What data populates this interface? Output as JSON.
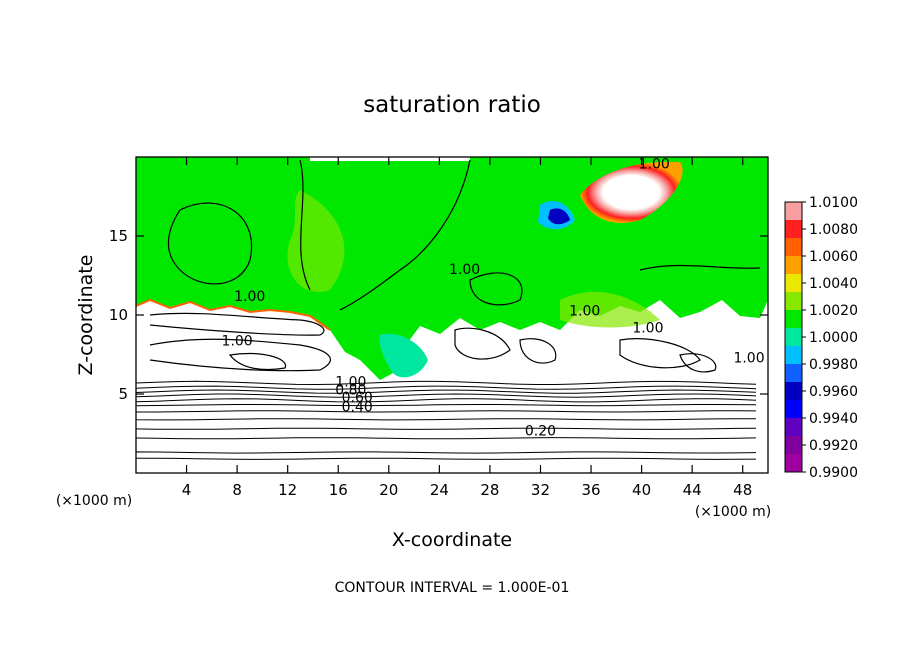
{
  "chart_data": {
    "type": "heatmap",
    "title": "saturation ratio",
    "xlabel": "X-coordinate",
    "ylabel": "Z-coordinate",
    "x_unit": "(×1000 m)",
    "z_unit": "(×1000 m)",
    "xlim": [
      0,
      50
    ],
    "ylim": [
      0,
      20
    ],
    "x_ticks": [
      4,
      8,
      12,
      16,
      20,
      24,
      28,
      32,
      36,
      40,
      44,
      48
    ],
    "y_ticks": [
      5,
      10,
      15
    ],
    "footer": "CONTOUR INTERVAL = 1.000E-01",
    "colorbar": {
      "labels": [
        "1.0100",
        "1.0080",
        "1.0060",
        "1.0040",
        "1.0020",
        "1.0000",
        "0.9980",
        "0.9960",
        "0.9940",
        "0.9920",
        "0.9900"
      ],
      "colors": [
        "#f8a0a0",
        "#ff2020",
        "#ff6000",
        "#ffa000",
        "#e8e800",
        "#88e800",
        "#00e800",
        "#00e8a0",
        "#00c0ff",
        "#1060ff",
        "#0000c0",
        "#0000ff",
        "#6000c0",
        "#8000a0",
        "#a000a0"
      ],
      "min": 0.99,
      "max": 1.01,
      "interval": 0.002
    },
    "contour_labels": [
      {
        "text": "1.00",
        "x": 41,
        "z": 19.6
      },
      {
        "text": "1.00",
        "x": 9,
        "z": 11.2
      },
      {
        "text": "1.00",
        "x": 26,
        "z": 12.9
      },
      {
        "text": "1.00",
        "x": 35.5,
        "z": 10.3
      },
      {
        "text": "1.00",
        "x": 8,
        "z": 8.4
      },
      {
        "text": "1.00",
        "x": 40.5,
        "z": 9.2
      },
      {
        "text": "1.00",
        "x": 48.5,
        "z": 7.3
      },
      {
        "text": "1.00",
        "x": 17,
        "z": 5.8
      },
      {
        "text": "0.80",
        "x": 17,
        "z": 5.3
      },
      {
        "text": "0.60",
        "x": 17.5,
        "z": 4.8
      },
      {
        "text": "0.40",
        "x": 17.5,
        "z": 4.2
      },
      {
        "text": "0.20",
        "x": 32,
        "z": 2.7
      }
    ],
    "low_level_contours_z": [
      0.9,
      1.3,
      2.2,
      2.8,
      3.4,
      3.9,
      4.3,
      4.6,
      4.9,
      5.15,
      5.4,
      5.7
    ]
  }
}
